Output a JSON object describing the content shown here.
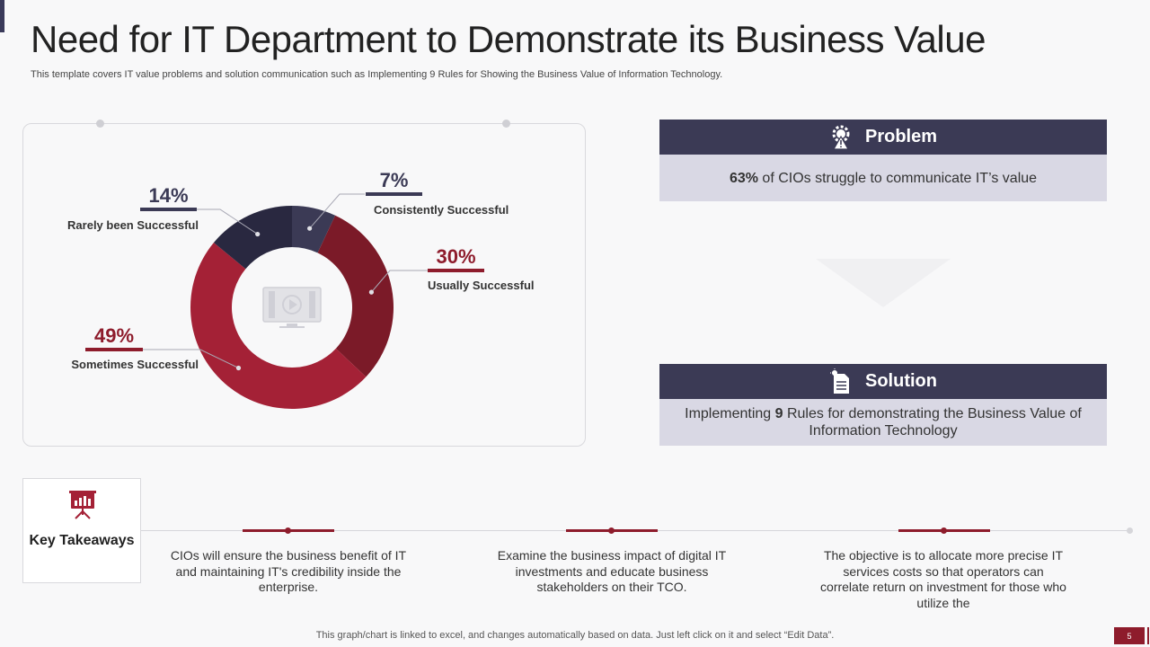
{
  "slide": {
    "title": "Need for IT Department to Demonstrate its Business Value",
    "subtitle": "This template covers IT value problems and solution communication such as Implementing 9 Rules for Showing the Business Value of Information Technology.",
    "footer_note": "This graph/chart is linked to excel,  and changes automatically based on data. Just left click on it and select “Edit Data”.",
    "page_number": "5"
  },
  "chart_data": {
    "type": "pie",
    "donut": true,
    "order": "clockwise from top",
    "slices": [
      {
        "label": "Consistently  Successful",
        "value": 7,
        "value_label": "7%",
        "color": "#3b3a55"
      },
      {
        "label": "Usually  Successful",
        "value": 30,
        "value_label": "30%",
        "color": "#7b1a28"
      },
      {
        "label": "Sometimes Successful",
        "value": 49,
        "value_label": "49%",
        "color": "#a42136"
      },
      {
        "label": "Rarely been Successful",
        "value": 14,
        "value_label": "14%",
        "color": "#292840"
      }
    ],
    "center_icon": "video-monitor-icon"
  },
  "problem": {
    "heading": "Problem",
    "stat": "63%",
    "text": " of CIOs struggle to communicate IT’s value",
    "icon": "gear-warning-icon"
  },
  "solution": {
    "heading": "Solution",
    "text_before": "Implementing ",
    "number": "9",
    "text_after": " Rules  for demonstrating the Business Value of Information  Technology",
    "icon": "document-idea-icon"
  },
  "takeaways": {
    "label": "Key Takeaways",
    "icon": "presentation-board-icon",
    "items": [
      "CIOs will ensure the business benefit of IT and maintaining IT's credibility inside the enterprise.",
      "Examine the business impact of digital IT investments and educate business stakeholders on their TCO.",
      "The objective is to allocate more precise IT services costs so that operators can correlate return on investment for those who utilize the"
    ]
  },
  "colors": {
    "navy": "#3b3a55",
    "maroon": "#8e1c2c",
    "lavender": "#d9d8e4"
  }
}
